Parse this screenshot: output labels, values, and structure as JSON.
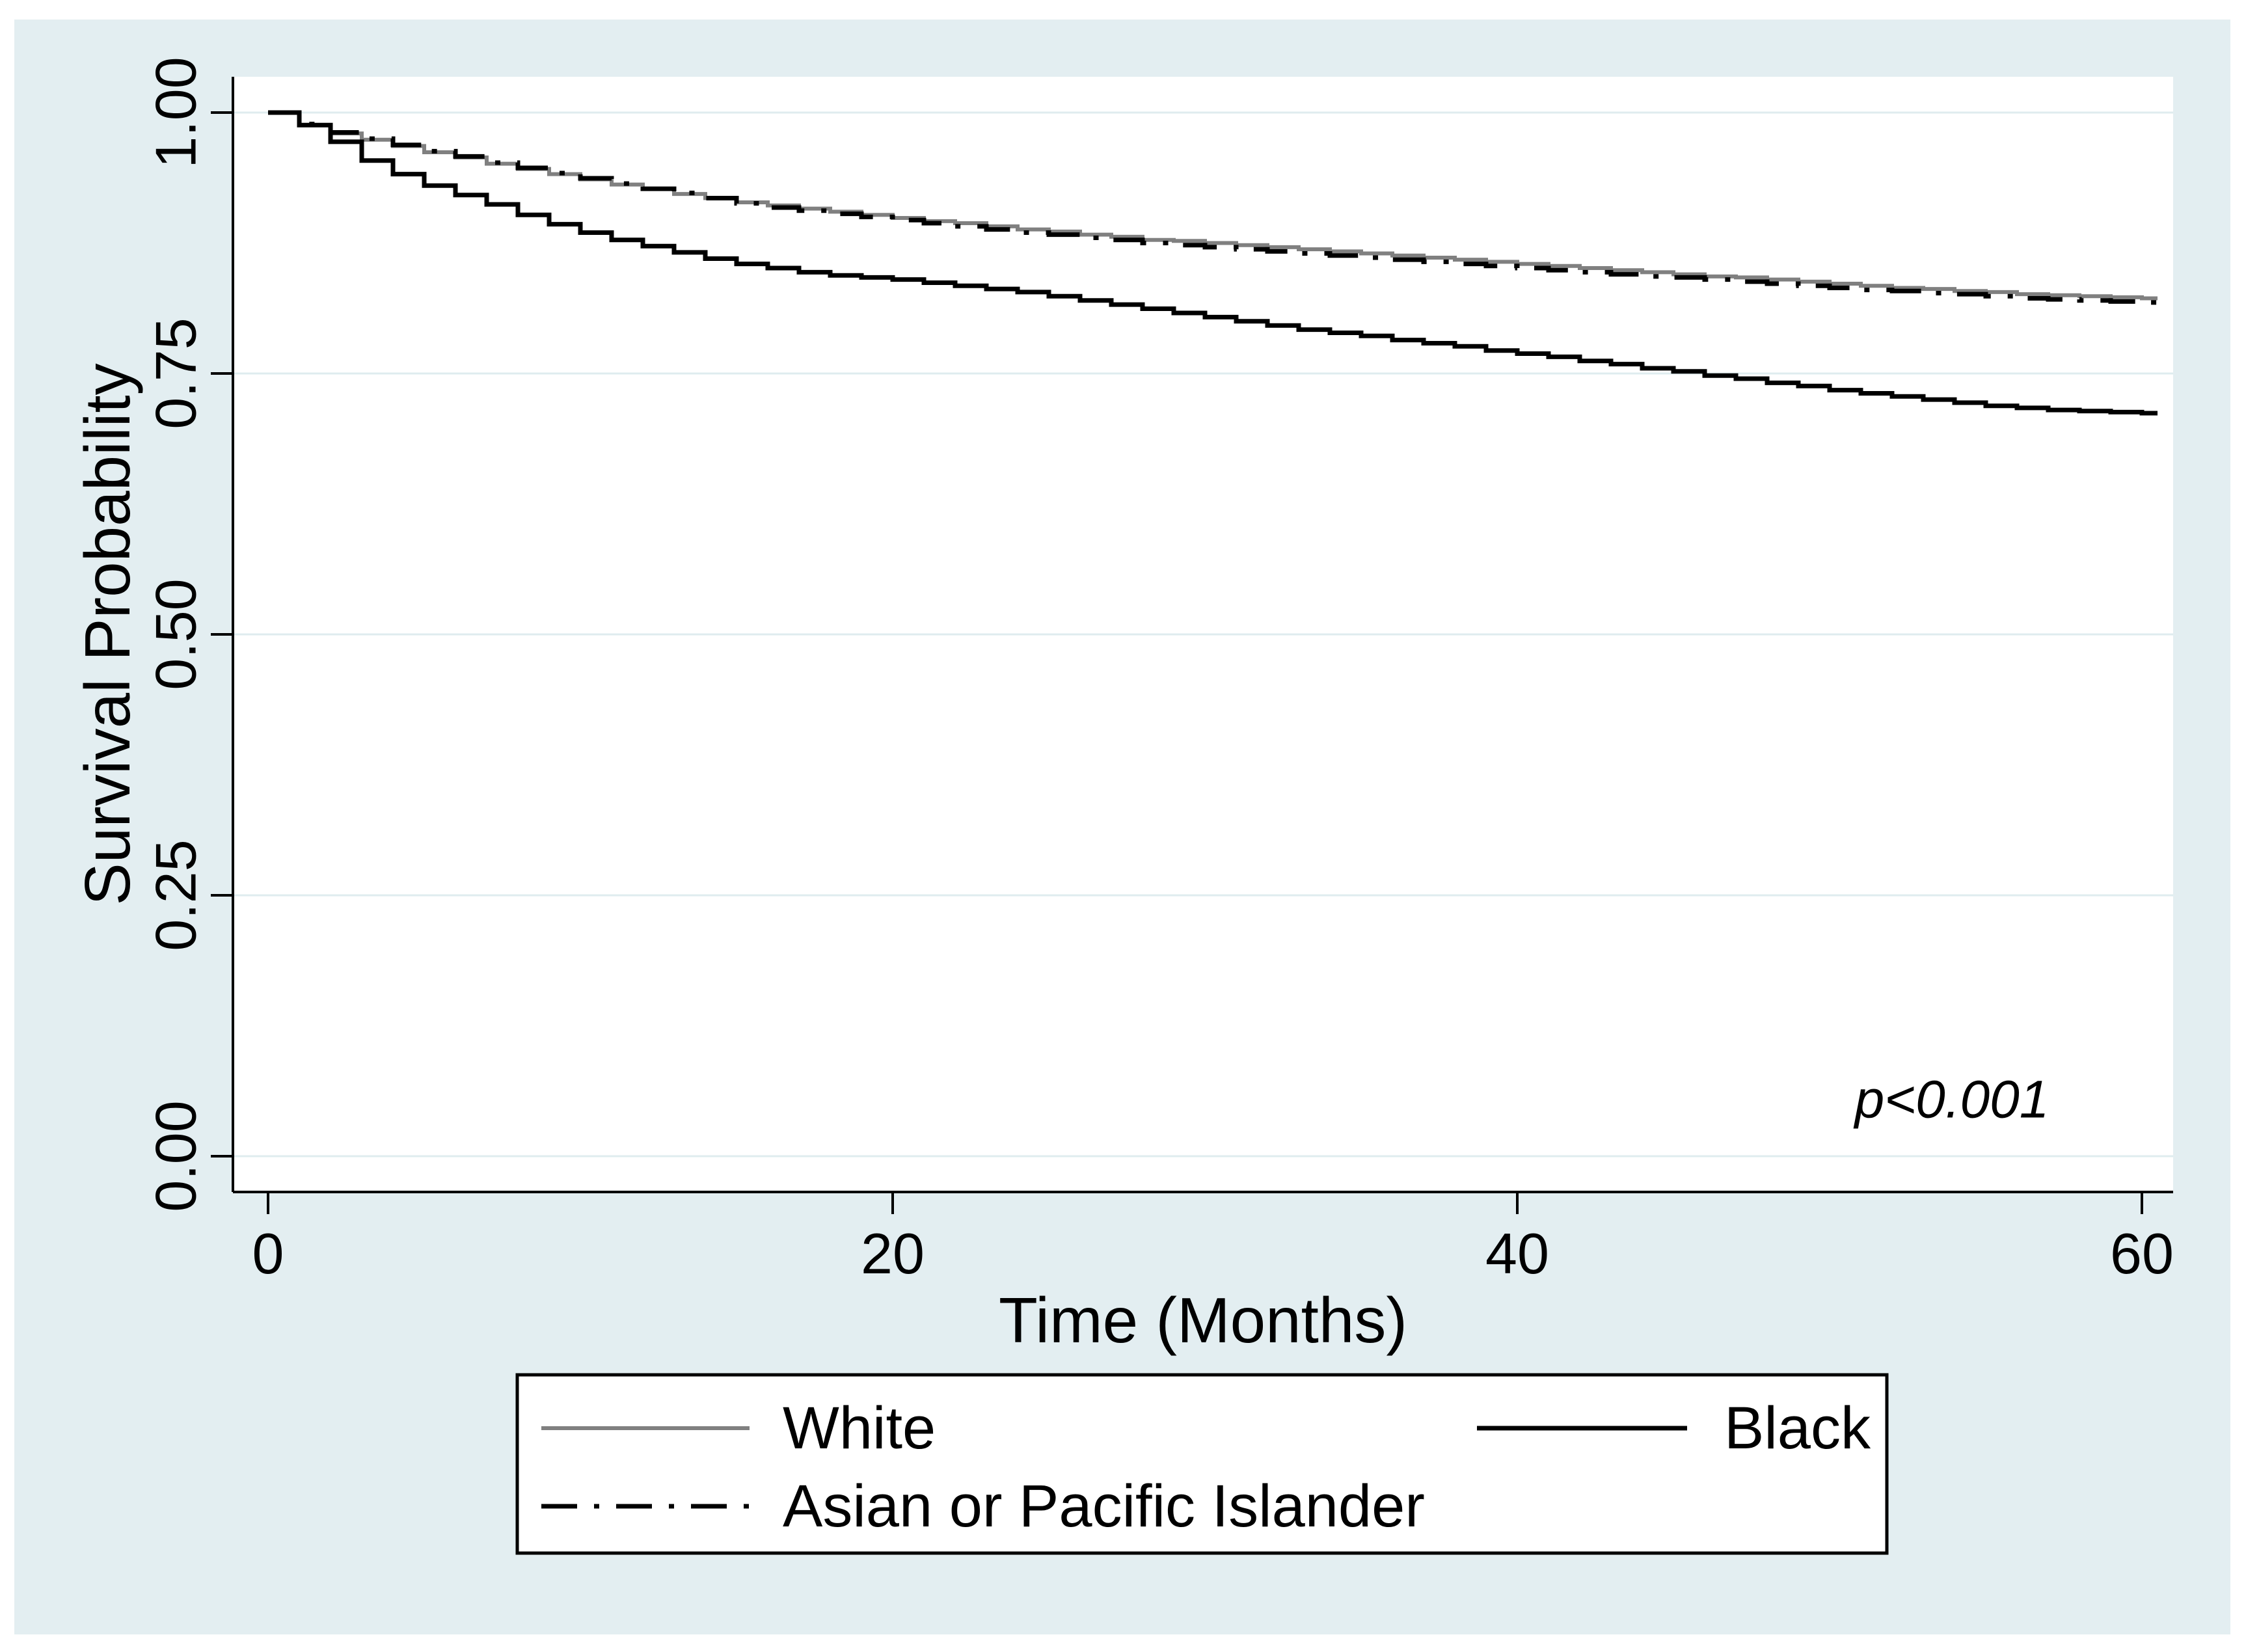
{
  "figure": {
    "background": "#ffffff",
    "panel_background": "#e3eef1",
    "plot_background": "#ffffff",
    "grid_color": "#dfecef",
    "axis_color": "#000000",
    "text_color": "#000000"
  },
  "chart_data": {
    "type": "line",
    "subtype": "kaplan-meier-step",
    "title": "",
    "xlabel": "Time (Months)",
    "ylabel": "Survival Probability",
    "xlim": [
      0,
      60
    ],
    "ylim": [
      0.0,
      1.0
    ],
    "xticks": [
      0,
      20,
      40,
      60
    ],
    "xtick_labels": [
      "0",
      "20",
      "40",
      "60"
    ],
    "yticks": [
      0.0,
      0.25,
      0.5,
      0.75,
      1.0
    ],
    "ytick_labels": [
      "0.00",
      "0.25",
      "0.50",
      "0.75",
      "1.00"
    ],
    "grid": true,
    "legend_position": "bottom",
    "annotation": {
      "text": "p<0.001",
      "x_month": 54,
      "y_prob": 0.055
    },
    "series": [
      {
        "name": "White",
        "color": "#808080",
        "style": "solid",
        "stroke_width": 6,
        "t_start": 0,
        "t_step": 1,
        "values": [
          1.0,
          0.988,
          0.98,
          0.974,
          0.968,
          0.962,
          0.957,
          0.951,
          0.946,
          0.941,
          0.936,
          0.931,
          0.927,
          0.922,
          0.918,
          0.914,
          0.911,
          0.908,
          0.905,
          0.902,
          0.899,
          0.896,
          0.894,
          0.891,
          0.888,
          0.886,
          0.883,
          0.881,
          0.878,
          0.877,
          0.875,
          0.873,
          0.871,
          0.869,
          0.867,
          0.865,
          0.863,
          0.861,
          0.859,
          0.857,
          0.855,
          0.853,
          0.851,
          0.849,
          0.847,
          0.845,
          0.843,
          0.842,
          0.84,
          0.838,
          0.836,
          0.834,
          0.832,
          0.831,
          0.829,
          0.828,
          0.826,
          0.825,
          0.824,
          0.823,
          0.822
        ]
      },
      {
        "name": "Black",
        "color": "#000000",
        "style": "solid",
        "stroke_width": 7,
        "t_start": 0,
        "t_step": 1,
        "values": [
          1.0,
          0.988,
          0.972,
          0.954,
          0.941,
          0.93,
          0.921,
          0.912,
          0.902,
          0.893,
          0.885,
          0.878,
          0.872,
          0.866,
          0.86,
          0.855,
          0.851,
          0.847,
          0.844,
          0.842,
          0.84,
          0.837,
          0.834,
          0.831,
          0.828,
          0.824,
          0.82,
          0.816,
          0.812,
          0.808,
          0.804,
          0.8,
          0.796,
          0.792,
          0.789,
          0.786,
          0.782,
          0.779,
          0.776,
          0.772,
          0.769,
          0.766,
          0.762,
          0.759,
          0.755,
          0.752,
          0.748,
          0.745,
          0.741,
          0.738,
          0.734,
          0.731,
          0.728,
          0.725,
          0.722,
          0.719,
          0.717,
          0.715,
          0.714,
          0.713,
          0.712
        ]
      },
      {
        "name": "Asian or Pacific Islander",
        "color": "#000000",
        "style": "dashdot",
        "stroke_width": 7,
        "t_start": 0,
        "t_step": 1,
        "values": [
          1.0,
          0.989,
          0.981,
          0.975,
          0.969,
          0.963,
          0.958,
          0.952,
          0.947,
          0.942,
          0.937,
          0.932,
          0.927,
          0.923,
          0.918,
          0.913,
          0.909,
          0.906,
          0.903,
          0.9,
          0.897,
          0.894,
          0.891,
          0.888,
          0.885,
          0.883,
          0.88,
          0.878,
          0.875,
          0.873,
          0.871,
          0.869,
          0.867,
          0.865,
          0.863,
          0.861,
          0.859,
          0.857,
          0.855,
          0.853,
          0.851,
          0.849,
          0.847,
          0.845,
          0.843,
          0.842,
          0.84,
          0.838,
          0.836,
          0.834,
          0.832,
          0.83,
          0.829,
          0.827,
          0.826,
          0.824,
          0.822,
          0.821,
          0.82,
          0.819,
          0.818
        ]
      }
    ],
    "legend_entries": [
      "White",
      "Black",
      "Asian or Pacific Islander"
    ]
  }
}
